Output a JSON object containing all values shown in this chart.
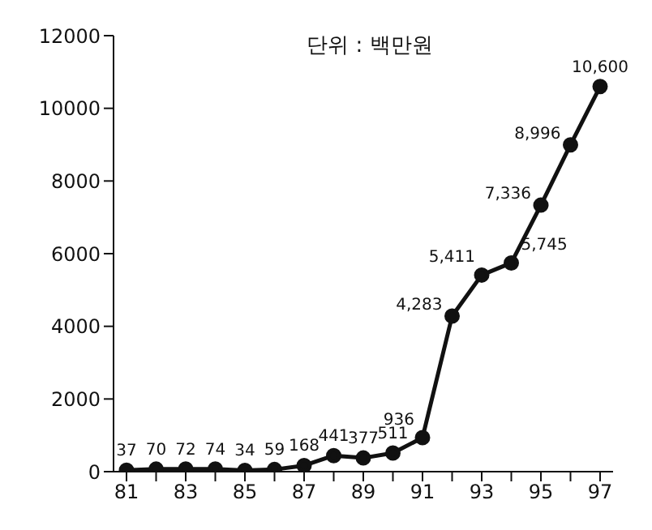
{
  "chart_data": {
    "type": "line",
    "title": "단위 : 백만원",
    "categories": [
      "81",
      null,
      "83",
      null,
      "85",
      null,
      "87",
      null,
      "89",
      null,
      "91",
      null,
      "93",
      null,
      "95",
      null,
      "97"
    ],
    "series": [
      {
        "color": "#111111",
        "values": [
          37,
          70,
          72,
          74,
          34,
          59,
          168,
          441,
          377,
          511,
          936,
          4283,
          5411,
          5745,
          7336,
          8996,
          10600
        ],
        "value_labels": [
          "37",
          "70",
          "72",
          "74",
          "34",
          "59",
          "168",
          "441",
          "377",
          "511",
          "936",
          "4,283",
          "5,411",
          "5,745",
          "7,336",
          "8,996",
          "10,600"
        ]
      }
    ],
    "ylim": [
      0,
      12000
    ],
    "yticks": [
      0,
      2000,
      4000,
      6000,
      8000,
      10000,
      12000
    ],
    "grid": false,
    "legend": false,
    "marker": "circle",
    "line_style": "solid"
  }
}
